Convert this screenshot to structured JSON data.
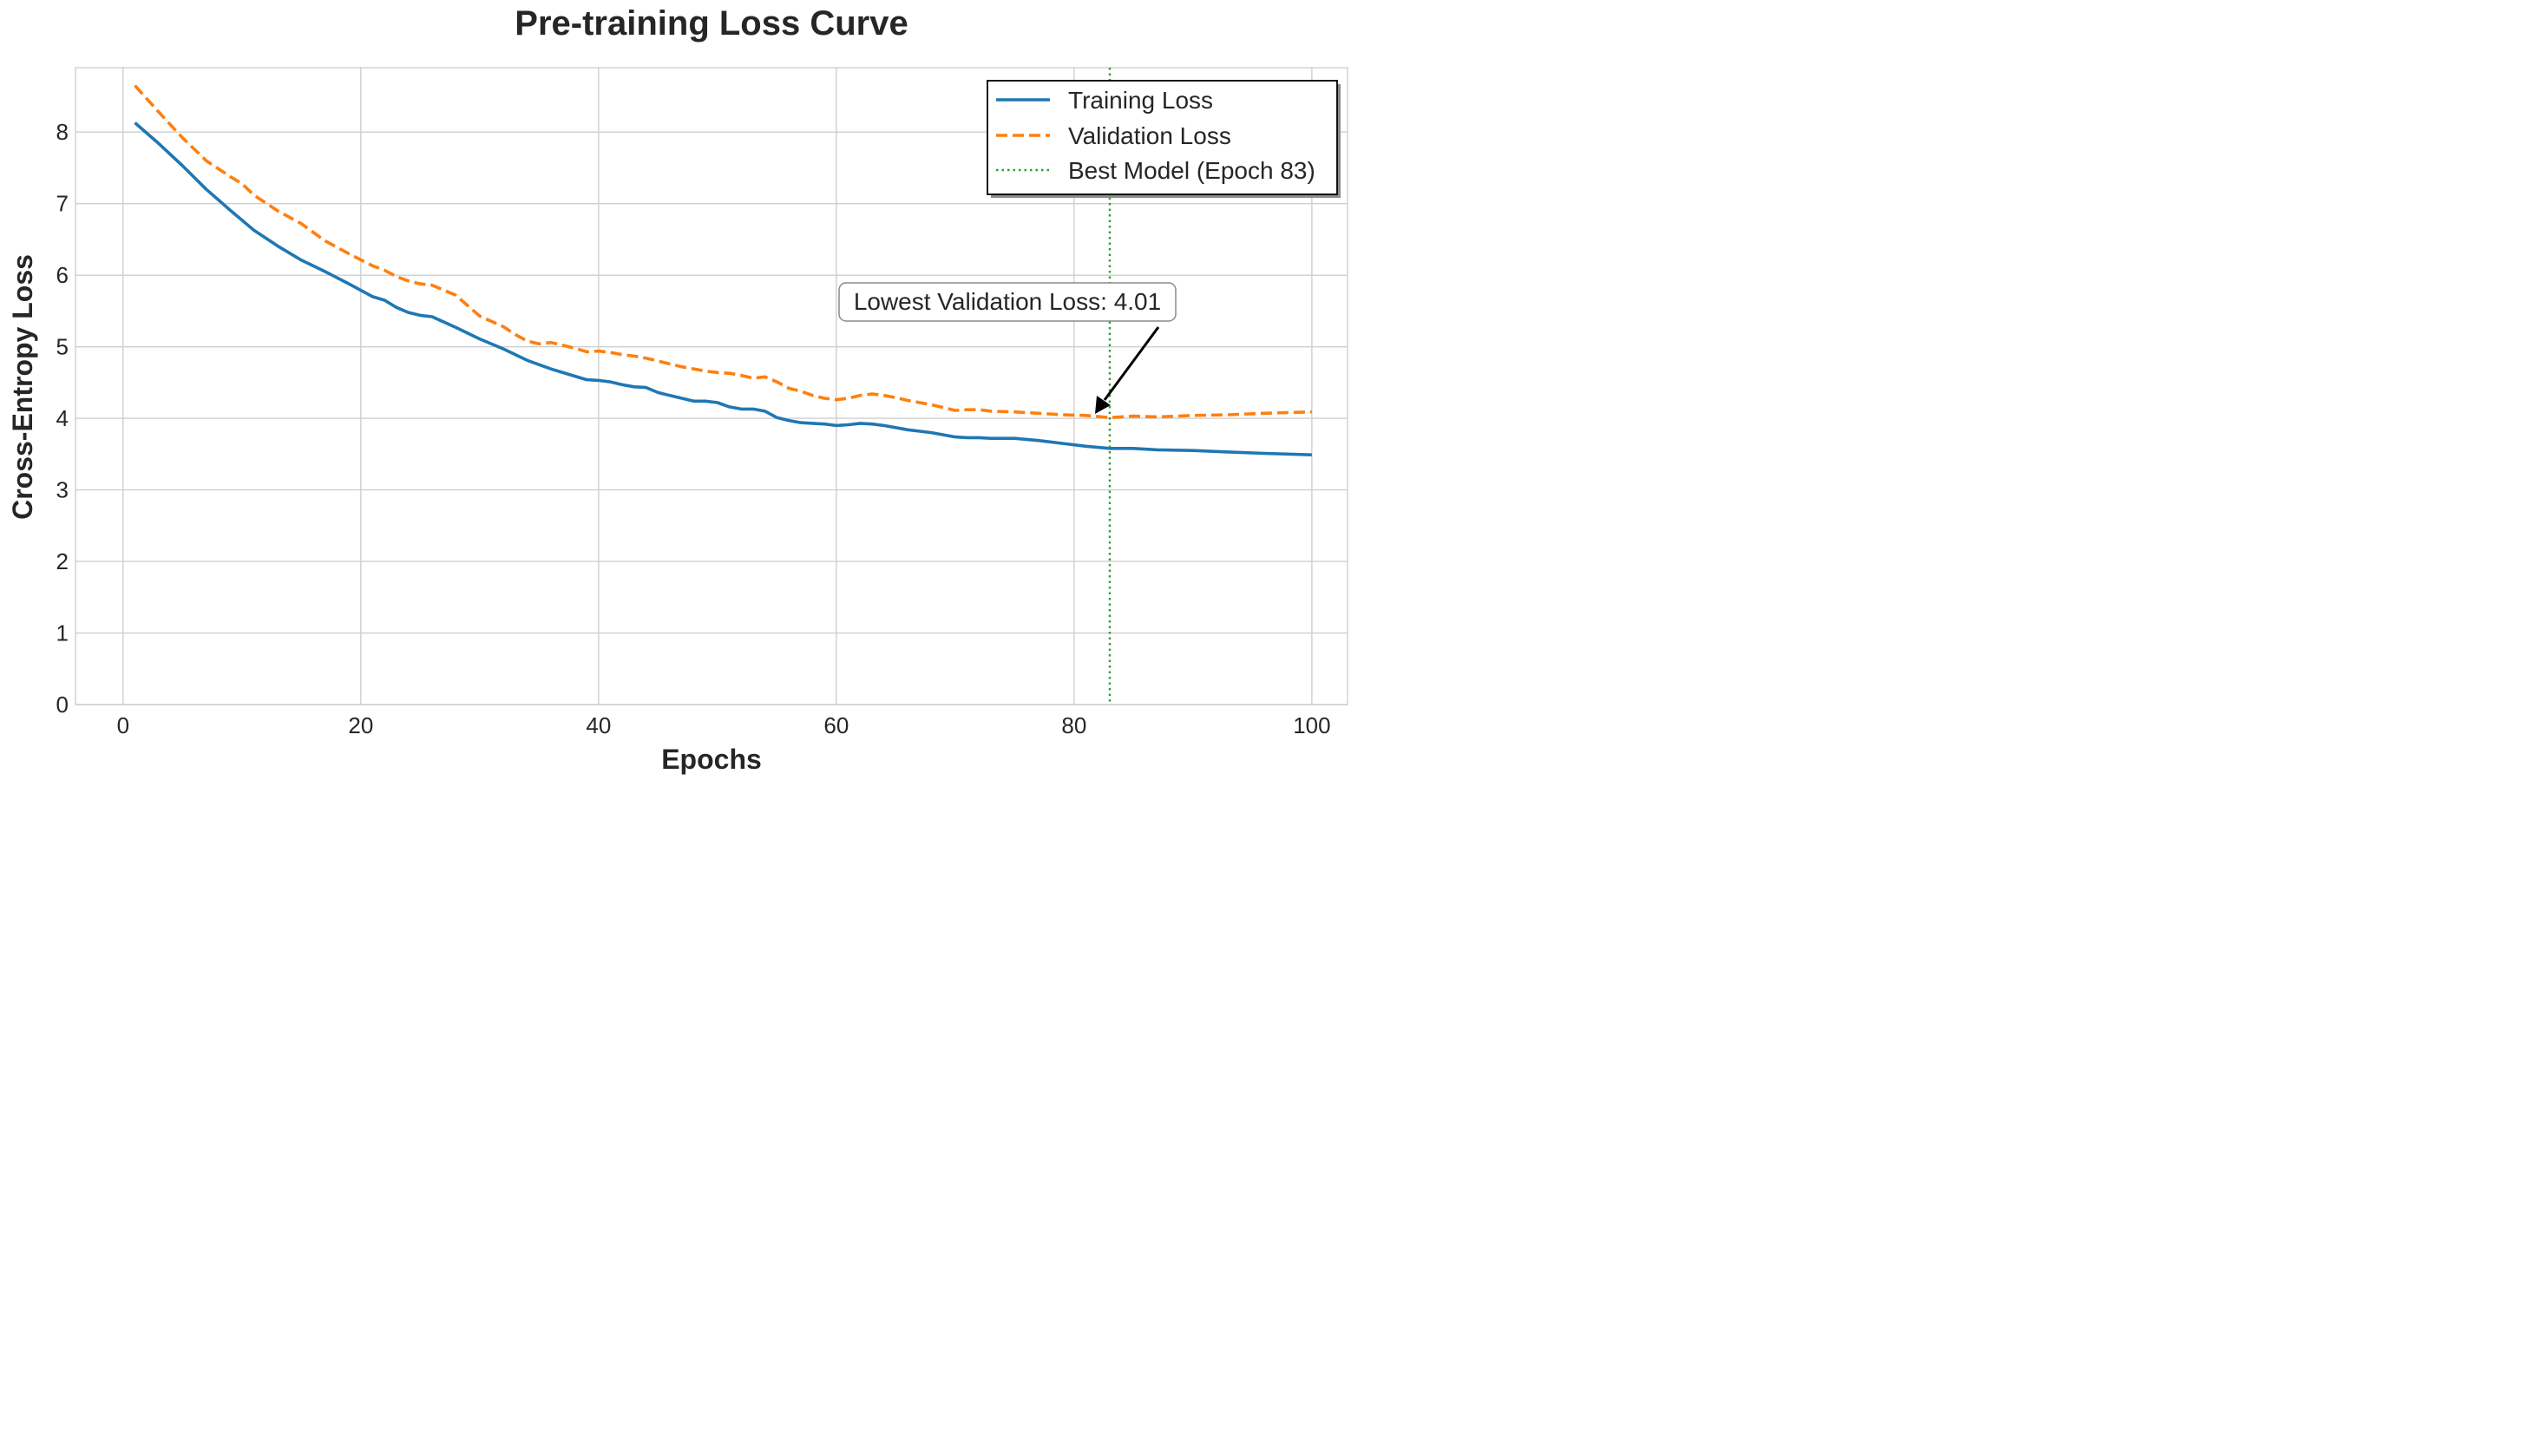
{
  "chart_data": {
    "type": "line",
    "title": "Pre-training Loss Curve",
    "xlabel": "Epochs",
    "ylabel": "Cross-Entropy Loss",
    "xlim": [
      -4,
      103
    ],
    "ylim": [
      0,
      8.9
    ],
    "xticks": [
      0,
      20,
      40,
      60,
      80,
      100
    ],
    "yticks": [
      0,
      1,
      2,
      3,
      4,
      5,
      6,
      7,
      8
    ],
    "grid": true,
    "legend_position": "top-right",
    "series": [
      {
        "name": "Training Loss",
        "color": "#1f77b4",
        "style": "solid",
        "x": [
          1,
          3,
          5,
          7,
          9,
          11,
          13,
          15,
          17,
          19,
          21,
          22,
          23,
          24,
          25,
          26,
          28,
          30,
          32,
          34,
          36,
          38,
          39,
          40,
          41,
          42,
          43,
          44,
          45,
          46,
          47,
          48,
          49,
          50,
          51,
          52,
          53,
          54,
          55,
          56,
          57,
          58,
          59,
          60,
          61,
          62,
          63,
          64,
          66,
          68,
          70,
          71,
          72,
          73,
          75,
          77,
          79,
          81,
          83,
          85,
          87,
          90,
          93,
          96,
          100
        ],
        "values": [
          8.13,
          7.84,
          7.53,
          7.2,
          6.91,
          6.63,
          6.41,
          6.21,
          6.05,
          5.88,
          5.7,
          5.65,
          5.55,
          5.48,
          5.44,
          5.42,
          5.27,
          5.11,
          4.97,
          4.81,
          4.69,
          4.59,
          4.54,
          4.53,
          4.51,
          4.47,
          4.44,
          4.43,
          4.36,
          4.32,
          4.28,
          4.24,
          4.24,
          4.22,
          4.16,
          4.13,
          4.13,
          4.1,
          4.01,
          3.97,
          3.94,
          3.93,
          3.92,
          3.9,
          3.91,
          3.93,
          3.92,
          3.9,
          3.84,
          3.8,
          3.74,
          3.73,
          3.73,
          3.72,
          3.72,
          3.69,
          3.65,
          3.61,
          3.58,
          3.58,
          3.56,
          3.55,
          3.53,
          3.51,
          3.49
        ]
      },
      {
        "name": "Validation Loss",
        "color": "#ff7f0e",
        "style": "dashed",
        "x": [
          1,
          3,
          5,
          7,
          9,
          10,
          11,
          13,
          15,
          17,
          19,
          21,
          22,
          23,
          24,
          25,
          26,
          28,
          30,
          32,
          33,
          34,
          35,
          36,
          38,
          39,
          40,
          41,
          42,
          43,
          44,
          45,
          46,
          47,
          48,
          49,
          50,
          51,
          52,
          53,
          54,
          55,
          56,
          57,
          58,
          59,
          60,
          61,
          62,
          63,
          64,
          65,
          66,
          68,
          70,
          71,
          72,
          73,
          75,
          77,
          79,
          81,
          83,
          85,
          87,
          90,
          93,
          96,
          100
        ],
        "values": [
          8.65,
          8.28,
          7.92,
          7.6,
          7.38,
          7.28,
          7.12,
          6.9,
          6.72,
          6.48,
          6.3,
          6.13,
          6.07,
          5.98,
          5.92,
          5.88,
          5.86,
          5.72,
          5.43,
          5.28,
          5.17,
          5.08,
          5.04,
          5.06,
          4.98,
          4.93,
          4.94,
          4.92,
          4.89,
          4.87,
          4.84,
          4.8,
          4.76,
          4.72,
          4.69,
          4.66,
          4.64,
          4.63,
          4.6,
          4.56,
          4.58,
          4.51,
          4.42,
          4.38,
          4.32,
          4.28,
          4.26,
          4.28,
          4.32,
          4.34,
          4.32,
          4.29,
          4.25,
          4.19,
          4.11,
          4.12,
          4.12,
          4.1,
          4.09,
          4.07,
          4.05,
          4.04,
          4.01,
          4.03,
          4.02,
          4.04,
          4.05,
          4.07,
          4.09
        ]
      }
    ],
    "vline": {
      "x": 83,
      "label": "Best Model (Epoch 83)",
      "color": "#2ca02c",
      "style": "dotted"
    },
    "annotation": {
      "text": "Lowest Validation Loss: 4.01",
      "target_x": 83,
      "target_y": 4.01
    }
  }
}
